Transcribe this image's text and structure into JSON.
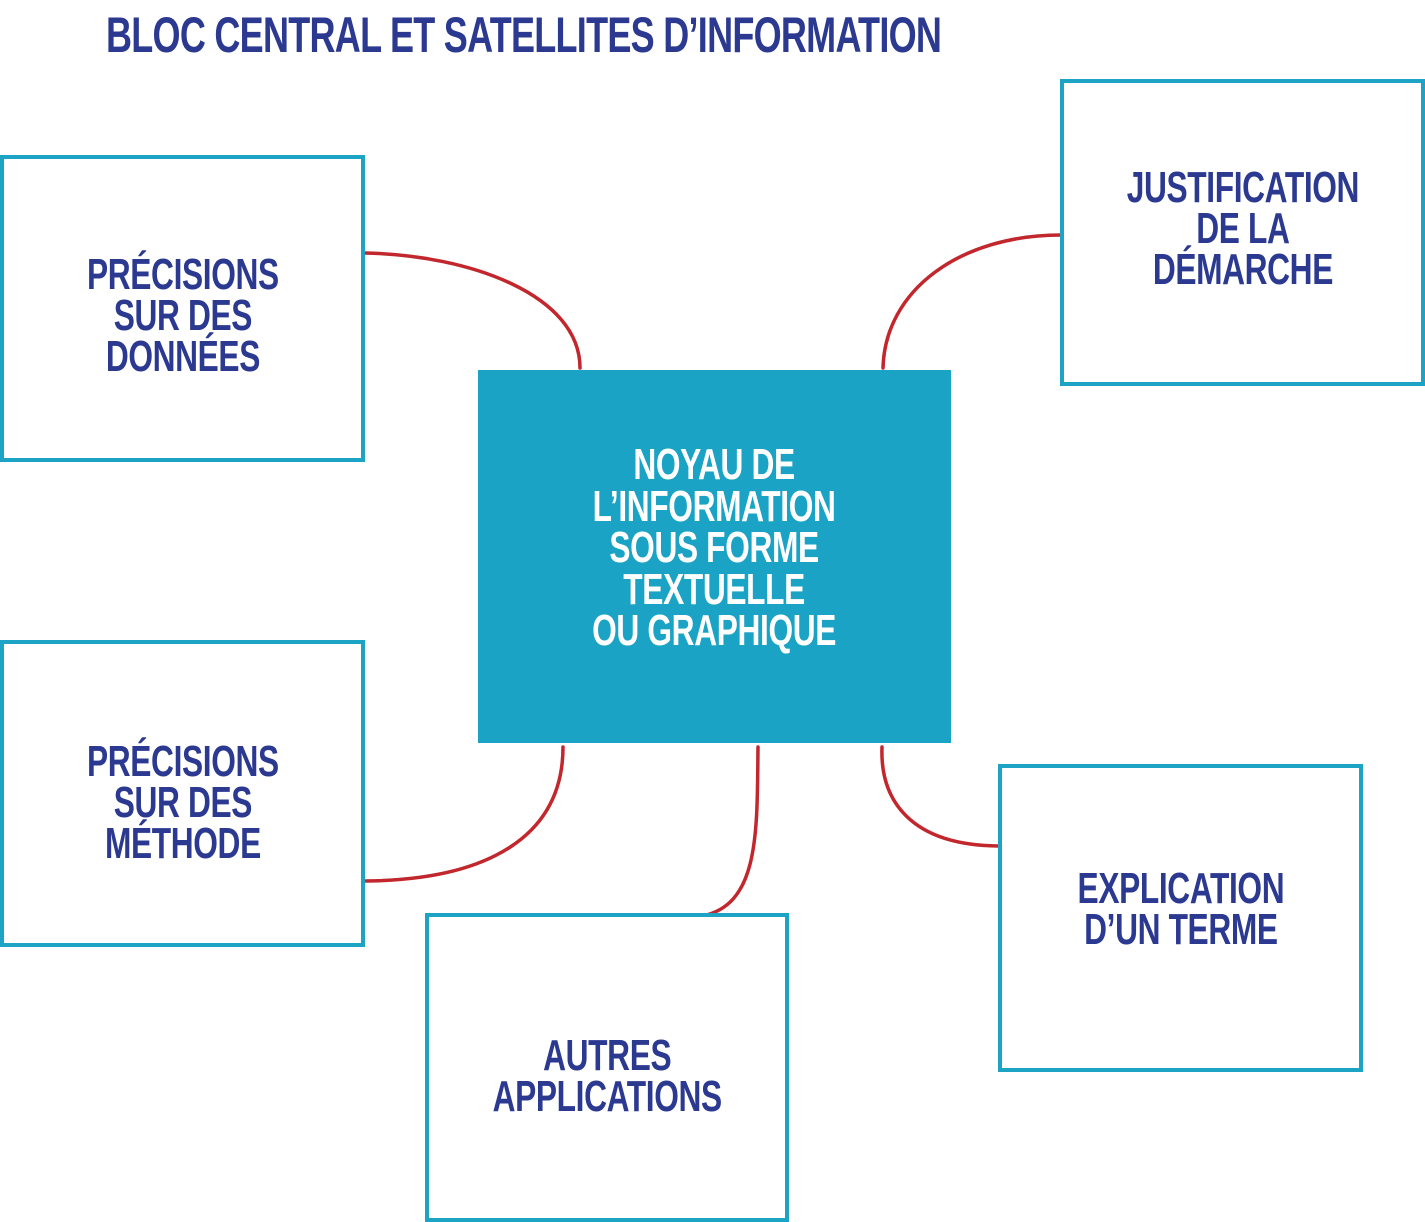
{
  "title": "BLOC CENTRAL ET SATELLITES D’INFORMATION",
  "colors": {
    "title_text": "#2b3990",
    "box_border": "#1da3c4",
    "core_fill": "#1aa3c4",
    "core_text": "#ffffff",
    "connector": "#c1272d"
  },
  "core": {
    "text": "NOYAU DE\nL’INFORMATION\nSOUS FORME\nTEXTUELLE\nOU GRAPHIQUE"
  },
  "satellites": {
    "donnees": "PRÉCISIONS\nSUR DES\nDONNÉES",
    "methode": "PRÉCISIONS\nSUR DES\nMÉTHODE",
    "applications": "AUTRES\nAPPLICATIONS",
    "justification": "JUSTIFICATION\nDE LA\nDÉMARCHE",
    "explication": "EXPLICATION\nD’UN TERME"
  }
}
